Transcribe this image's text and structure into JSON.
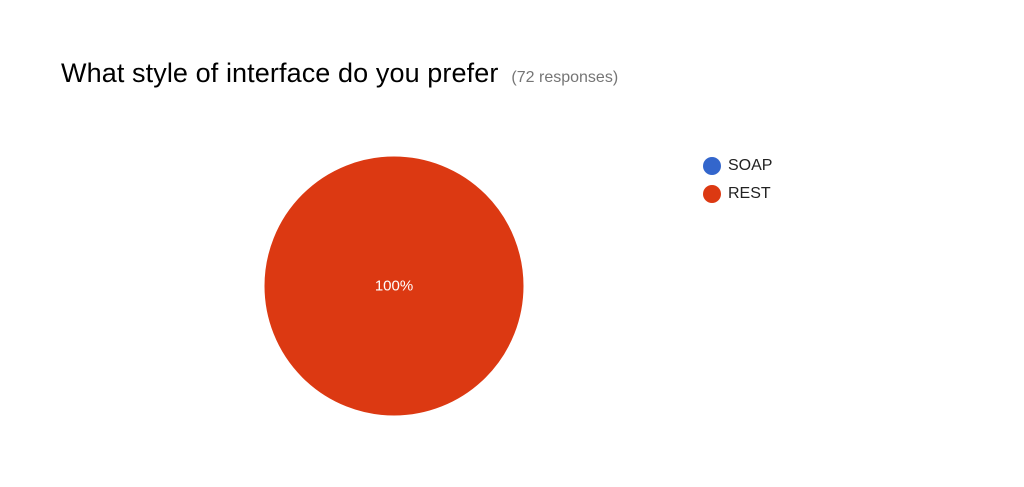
{
  "title": "What style of interface do you prefer",
  "response_count": "(72 responses)",
  "chart_data": {
    "type": "pie",
    "categories": [
      "SOAP",
      "REST"
    ],
    "values": [
      0,
      100
    ],
    "value_labels": [
      "",
      "100%"
    ],
    "colors": [
      "#3366cc",
      "#dc3912"
    ],
    "legend_position": "right"
  }
}
